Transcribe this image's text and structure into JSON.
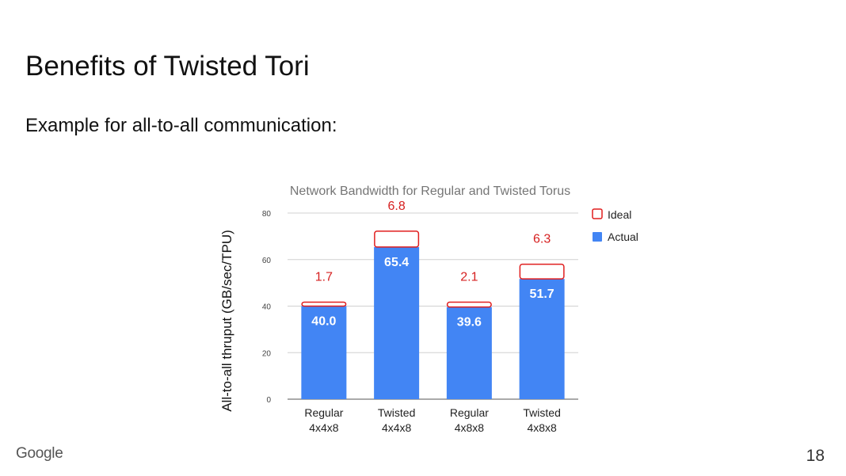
{
  "slide": {
    "title": "Benefits of Twisted Tori",
    "subtitle": "Example for all-to-all communication:",
    "logo_text": "Google",
    "page_number": "18"
  },
  "colors": {
    "actual": "#4285f4",
    "ideal_border": "#e01e1e",
    "delta_text": "#d62020",
    "grid": "#d0d0d0",
    "axis_text": "#444444",
    "title_text": "#757575"
  },
  "chart_data": {
    "type": "bar",
    "stacked": true,
    "title": "Network Bandwidth for Regular and Twisted Torus",
    "xlabel": "",
    "ylabel": "All-to-all thruput (GB/sec/TPU)",
    "ylim": [
      0,
      80
    ],
    "yticks": [
      0,
      20,
      40,
      60,
      80
    ],
    "grid": true,
    "legend_position": "top-right",
    "categories": [
      [
        "Regular",
        "4x4x8"
      ],
      [
        "Twisted",
        "4x4x8"
      ],
      [
        "Regular",
        "4x8x8"
      ],
      [
        "Twisted",
        "4x8x8"
      ]
    ],
    "series": [
      {
        "name": "Actual",
        "values": [
          40.0,
          65.4,
          39.6,
          51.7
        ],
        "labels": [
          "40.0",
          "65.4",
          "39.6",
          "51.7"
        ]
      },
      {
        "name": "Ideal",
        "values": [
          1.7,
          6.8,
          2.1,
          6.3
        ],
        "labels": [
          "1.7",
          "6.8",
          "2.1",
          "6.3"
        ]
      }
    ]
  }
}
